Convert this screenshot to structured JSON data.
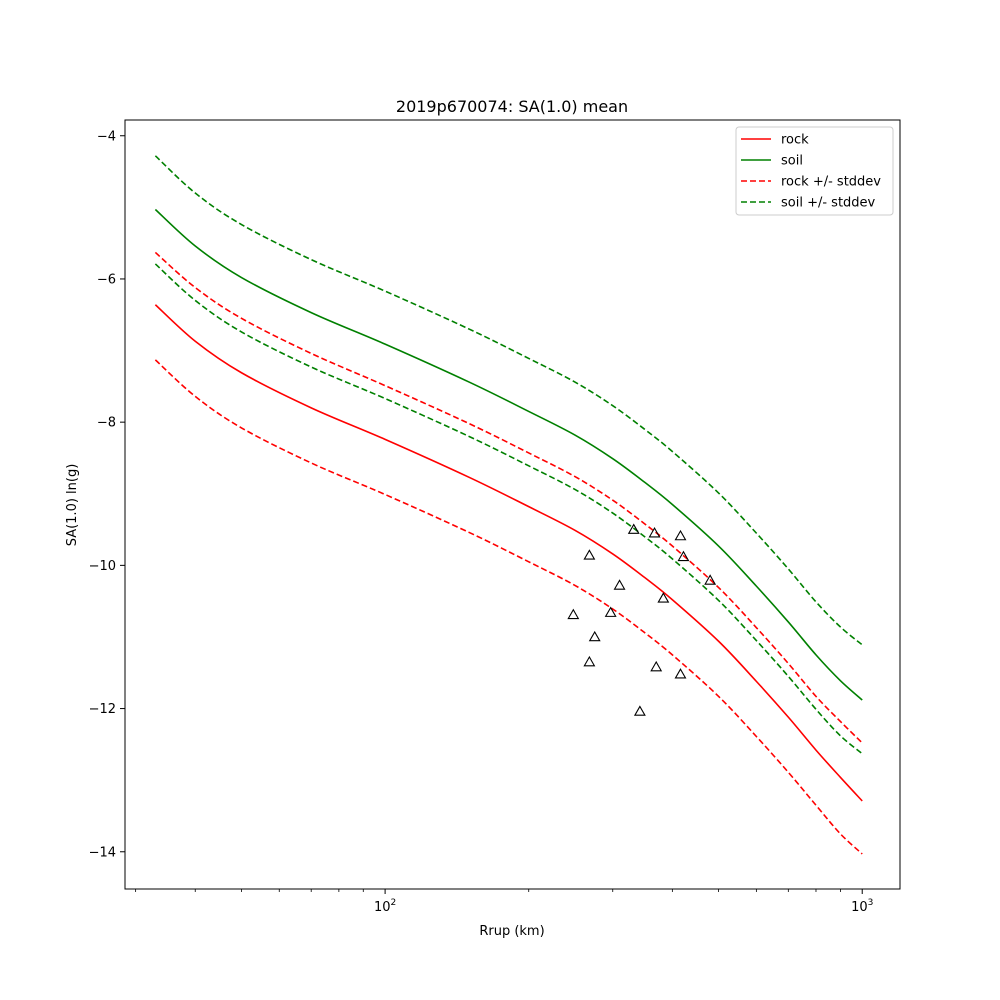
{
  "chart_data": {
    "type": "line",
    "title": "2019p670074: SA(1.0) mean",
    "xlabel": "Rrup (km)",
    "ylabel": "SA(1.0) ln(g)",
    "xscale": "log",
    "xlim": [
      28.5,
      1200
    ],
    "ylim": [
      -14.52,
      -3.78
    ],
    "x_ticks": [
      {
        "value": 100,
        "base": "10",
        "exp": "2"
      },
      {
        "value": 1000,
        "base": "10",
        "exp": "3"
      }
    ],
    "y_ticks": [
      -4,
      -6,
      -8,
      -10,
      -12,
      -14
    ],
    "grid": false,
    "legend": "top-right",
    "colors": {
      "rock": "#ff0000",
      "soil": "#008000",
      "markers": "#000000"
    },
    "x": [
      33,
      40,
      50,
      70,
      100,
      150,
      200,
      250,
      300,
      350,
      400,
      500,
      600,
      700,
      800,
      900,
      1000
    ],
    "series": [
      {
        "name": "rock",
        "style": "solid",
        "color": "#ff0000",
        "values": [
          -6.36,
          -6.87,
          -7.31,
          -7.8,
          -8.24,
          -8.77,
          -9.18,
          -9.51,
          -9.84,
          -10.17,
          -10.48,
          -11.06,
          -11.62,
          -12.12,
          -12.58,
          -12.96,
          -13.29
        ]
      },
      {
        "name": "soil",
        "style": "solid",
        "color": "#008000",
        "values": [
          -5.03,
          -5.54,
          -5.98,
          -6.47,
          -6.91,
          -7.44,
          -7.85,
          -8.18,
          -8.51,
          -8.84,
          -9.15,
          -9.73,
          -10.29,
          -10.79,
          -11.25,
          -11.61,
          -11.88
        ]
      },
      {
        "name": "rock +/- stddev",
        "style": "dashed",
        "color": "#ff0000",
        "values": [
          -5.63,
          -6.12,
          -6.55,
          -7.04,
          -7.49,
          -8.02,
          -8.43,
          -8.76,
          -9.09,
          -9.42,
          -9.73,
          -10.31,
          -10.87,
          -11.37,
          -11.83,
          -12.18,
          -12.48
        ]
      },
      {
        "name": "",
        "style": "dashed",
        "color": "#ff0000",
        "values": [
          -7.13,
          -7.64,
          -8.08,
          -8.57,
          -9.01,
          -9.54,
          -9.95,
          -10.28,
          -10.61,
          -10.94,
          -11.25,
          -11.83,
          -12.39,
          -12.89,
          -13.35,
          -13.75,
          -14.03
        ]
      },
      {
        "name": "soil +/- stddev",
        "style": "dashed",
        "color": "#008000",
        "values": [
          -4.28,
          -4.8,
          -5.24,
          -5.73,
          -6.17,
          -6.7,
          -7.11,
          -7.44,
          -7.77,
          -8.1,
          -8.41,
          -8.99,
          -9.55,
          -10.05,
          -10.51,
          -10.86,
          -11.11
        ]
      },
      {
        "name": "",
        "style": "dashed",
        "color": "#008000",
        "values": [
          -5.79,
          -6.3,
          -6.74,
          -7.23,
          -7.67,
          -8.2,
          -8.61,
          -8.94,
          -9.27,
          -9.6,
          -9.91,
          -10.49,
          -11.05,
          -11.55,
          -12.01,
          -12.38,
          -12.63
        ]
      }
    ],
    "observations": [
      {
        "x": 248,
        "y": -10.69
      },
      {
        "x": 268,
        "y": -9.86
      },
      {
        "x": 268,
        "y": -11.35
      },
      {
        "x": 275,
        "y": -11.0
      },
      {
        "x": 297,
        "y": -10.66
      },
      {
        "x": 310,
        "y": -10.28
      },
      {
        "x": 332,
        "y": -9.5
      },
      {
        "x": 342,
        "y": -12.04
      },
      {
        "x": 367,
        "y": -9.55
      },
      {
        "x": 370,
        "y": -11.42
      },
      {
        "x": 383,
        "y": -10.46
      },
      {
        "x": 416,
        "y": -9.59
      },
      {
        "x": 416,
        "y": -11.52
      },
      {
        "x": 422,
        "y": -9.88
      },
      {
        "x": 480,
        "y": -10.21
      }
    ]
  }
}
